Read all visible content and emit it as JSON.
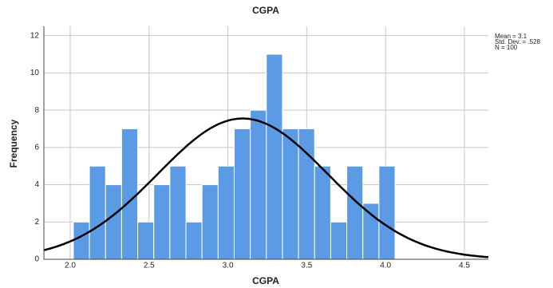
{
  "chart_data": {
    "type": "histogram",
    "title": "CGPA",
    "x_label": "CGPA",
    "y_label": "Frequency",
    "bins": [
      2.02,
      2.122,
      2.224,
      2.326,
      2.428,
      2.53,
      2.632,
      2.734,
      2.836,
      2.938,
      3.04,
      3.142,
      3.244,
      3.346,
      3.448,
      3.55,
      3.652,
      3.754,
      3.856,
      3.958,
      4.06
    ],
    "values": [
      2,
      5,
      4,
      7,
      2,
      4,
      5,
      2,
      4,
      5,
      7,
      8,
      11,
      7,
      7,
      5,
      2,
      5,
      3,
      5
    ],
    "color": "#5b9be6",
    "curve_color": "#000000",
    "xlim": [
      1.833,
      4.652
    ],
    "ylim": [
      0,
      12.5
    ],
    "xticks": [
      {
        "value": 2,
        "label": "2.0"
      },
      2.5,
      {
        "value": 3,
        "label": "3.0"
      },
      3.5,
      {
        "value": 4,
        "label": "4.0"
      },
      4.5
    ],
    "yticks": [
      0,
      2,
      4,
      6,
      8,
      10,
      12
    ],
    "grid": true,
    "annotations": [
      "Mean = 3.1",
      "Std. Dev. = .528",
      "N = 100"
    ]
  }
}
